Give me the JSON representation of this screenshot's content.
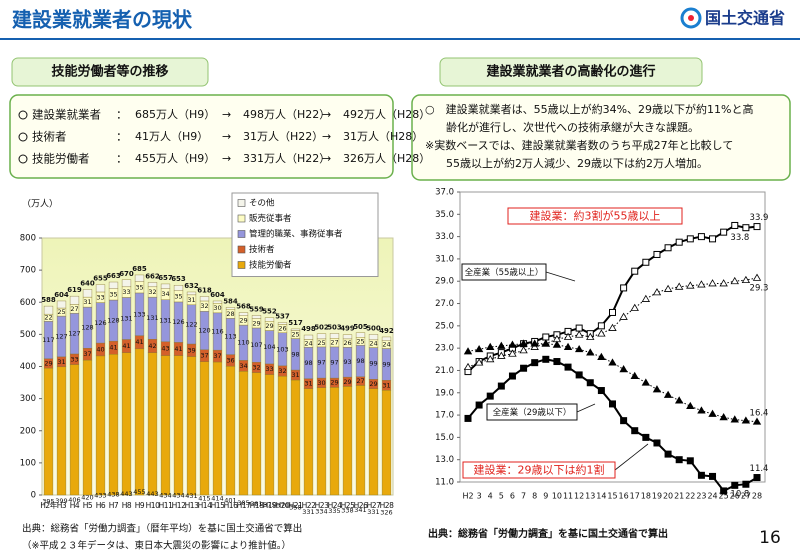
{
  "header": {
    "title": "建設業就業者の現状",
    "logo": "国土交通省"
  },
  "left": {
    "heading": "技能労働者等の推移",
    "colon": "：",
    "summary": [
      {
        "label": "建設業就業者",
        "parts": [
          "685万人（H9）",
          "→",
          "498万人（H22）",
          "→",
          "492万人（H28）"
        ]
      },
      {
        "label": "技術者",
        "parts": [
          "41万人（H9）",
          "→",
          "31万人（H22）",
          "→",
          "31万人（H28）"
        ]
      },
      {
        "label": "技能労働者",
        "parts": [
          "455万人（H9）",
          "→",
          "331万人（H22）",
          "→",
          "326万人（H28）"
        ]
      }
    ],
    "notes": [
      "出典：総務省「労働力調査」（暦年平均）を基に国土交通省で算出",
      "（※平成２３年データは、東日本大震災の影響により推計値。）"
    ]
  },
  "right": {
    "heading": "建設業就業者の高齢化の進行",
    "summary": [
      "○　建設業就業者は、55歳以上が約34%、29歳以下が約11%と高",
      "齢化が進行し、次世代への技術承継が大きな課題。",
      "※実数ベースでは、建設業就業者数のうち平成27年と比較して",
      "55歳以上が約2万人減少、29歳以下は約2万人増加。"
    ],
    "note": "出典：総務省「労働力調査」を基に国土交通省で算出"
  },
  "page_number": "16",
  "chart_data": [
    {
      "type": "stacked-bar",
      "y_label": "（万人）",
      "legend": "top",
      "grid": false,
      "categories": [
        "H2年",
        "H3",
        "H4",
        "H5",
        "H6",
        "H7",
        "H8",
        "H9",
        "H10",
        "H11",
        "H12",
        "H13",
        "H14",
        "H15",
        "H16",
        "H17",
        "H18",
        "H19",
        "H20",
        "H21",
        "H22",
        "H23",
        "H24",
        "H25",
        "H26",
        "H27",
        "H28"
      ],
      "ylim": [
        0,
        800
      ],
      "yticks": [
        0,
        100,
        200,
        300,
        400,
        500,
        600,
        700,
        800
      ],
      "series": [
        {
          "name": "技能労働者",
          "color": "#e8a90c",
          "labels": true,
          "values": [
            395,
            399,
            406,
            420,
            433,
            438,
            443,
            455,
            443,
            434,
            434,
            431,
            415,
            414,
            401,
            385,
            381,
            375,
            370,
            358,
            331,
            334,
            335,
            338,
            341,
            331,
            326
          ]
        },
        {
          "name": "技術者",
          "color": "#d4602a",
          "labels": true,
          "values": [
            29,
            31,
            33,
            37,
            40,
            41,
            41,
            41,
            42,
            43,
            41,
            39,
            37,
            37,
            36,
            34,
            32,
            33,
            32,
            31,
            31,
            30,
            29,
            29,
            27,
            29,
            31
          ]
        },
        {
          "name": "管理的職業、事務従事者",
          "color": "#9596dc",
          "labels": true,
          "values": [
            117,
            127,
            127,
            128,
            126,
            128,
            131,
            133,
            131,
            131,
            126,
            122,
            120,
            116,
            113,
            110,
            107,
            104,
            103,
            98,
            98,
            97,
            97,
            93,
            98,
            99,
            99
          ]
        },
        {
          "name": "販売従事者",
          "color": "#fdfcc4",
          "labels": true,
          "values": [
            22,
            25,
            27,
            31,
            33,
            35,
            33,
            35,
            32,
            34,
            35,
            31,
            32,
            30,
            28,
            29,
            29,
            29,
            26,
            25,
            24,
            25,
            27,
            26,
            25,
            24,
            24
          ]
        },
        {
          "name": "その他",
          "color": "#f4f4ea",
          "labels": false,
          "values": [
            25,
            22,
            26,
            24,
            23,
            21,
            22,
            21,
            14,
            15,
            17,
            9,
            14,
            7,
            6,
            10,
            10,
            11,
            6,
            5,
            14,
            16,
            15,
            13,
            14,
            17,
            12
          ]
        }
      ],
      "totals": [
        588,
        604,
        619,
        640,
        655,
        663,
        670,
        685,
        662,
        657,
        653,
        632,
        618,
        604,
        584,
        568,
        559,
        552,
        537,
        517,
        498,
        502,
        503,
        499,
        505,
        500,
        492
      ]
    },
    {
      "type": "line",
      "grid": false,
      "categories": [
        "H2",
        "3",
        "4",
        "5",
        "6",
        "7",
        "8",
        "9",
        "10",
        "11",
        "12",
        "13",
        "14",
        "15",
        "16",
        "17",
        "18",
        "19",
        "20",
        "21",
        "22",
        "23",
        "24",
        "25",
        "26",
        "27",
        "28"
      ],
      "ylim": [
        11,
        37
      ],
      "yticks": [
        {
          "value": 11,
          "label": "11.0"
        },
        {
          "value": 13,
          "label": "13.0"
        },
        {
          "value": 15,
          "label": "15.0"
        },
        {
          "value": 17,
          "label": "17.0"
        },
        {
          "value": 19,
          "label": "19.0"
        },
        {
          "value": 21,
          "label": "21.0"
        },
        {
          "value": 23,
          "label": "23.0"
        },
        {
          "value": 25,
          "label": "25.0"
        },
        {
          "value": 27,
          "label": "27.0"
        },
        {
          "value": 29,
          "label": "29.0"
        },
        {
          "value": 31,
          "label": "31.0"
        },
        {
          "value": 33,
          "label": "33.0"
        },
        {
          "value": 35,
          "label": "35.0"
        },
        {
          "value": 37,
          "label": "37.0"
        }
      ],
      "series": [
        {
          "name": "建設業：約3割が55歳以上",
          "color": "#000000",
          "marker": "square",
          "filled": false,
          "dashed": false,
          "values": [
            20.9,
            21.8,
            22.3,
            22.6,
            23.0,
            23.4,
            23.6,
            24.0,
            24.2,
            24.5,
            24.8,
            24.3,
            25.0,
            26.2,
            28.4,
            29.9,
            30.7,
            31.4,
            32.0,
            32.5,
            32.8,
            33.0,
            32.8,
            33.4,
            34.0,
            33.8,
            33.9
          ],
          "value_labels": [
            null,
            null,
            null,
            null,
            null,
            null,
            null,
            null,
            null,
            null,
            null,
            null,
            null,
            null,
            null,
            null,
            null,
            null,
            null,
            null,
            null,
            null,
            null,
            null,
            null,
            "33.8",
            "33.9"
          ]
        },
        {
          "name": "全産業（55歳以上）",
          "color": "#000000",
          "marker": "triangle",
          "filled": false,
          "dashed": true,
          "values": [
            21.3,
            21.7,
            22.0,
            22.3,
            22.5,
            22.8,
            23.1,
            23.4,
            23.8,
            24.0,
            24.2,
            24.0,
            24.3,
            24.8,
            25.8,
            26.6,
            27.4,
            28.0,
            28.3,
            28.5,
            28.6,
            28.7,
            28.8,
            28.8,
            29.0,
            29.1,
            29.3
          ],
          "value_labels": [
            null,
            null,
            null,
            null,
            null,
            null,
            null,
            null,
            null,
            null,
            null,
            null,
            null,
            null,
            null,
            null,
            null,
            null,
            null,
            null,
            null,
            null,
            null,
            null,
            null,
            null,
            "29.3"
          ]
        },
        {
          "name": "全産業（29歳以下）",
          "color": "#000000",
          "marker": "triangle",
          "filled": true,
          "dashed": true,
          "values": [
            22.7,
            22.9,
            23.1,
            23.2,
            23.3,
            23.4,
            23.4,
            23.4,
            23.3,
            23.1,
            22.9,
            22.6,
            22.2,
            21.7,
            21.1,
            20.5,
            19.9,
            19.3,
            18.8,
            18.3,
            17.8,
            17.4,
            17.1,
            16.8,
            16.6,
            16.5,
            16.4
          ],
          "value_labels": [
            null,
            null,
            null,
            null,
            null,
            null,
            null,
            null,
            null,
            null,
            null,
            null,
            null,
            null,
            null,
            null,
            null,
            null,
            null,
            null,
            null,
            null,
            null,
            null,
            null,
            null,
            "16.4"
          ]
        },
        {
          "name": "建設業：29歳以下は約1割",
          "color": "#000000",
          "marker": "square",
          "filled": true,
          "dashed": false,
          "values": [
            16.7,
            17.9,
            18.7,
            19.6,
            20.5,
            21.2,
            21.7,
            22.0,
            21.8,
            21.3,
            20.6,
            19.9,
            19.2,
            18.0,
            16.5,
            15.6,
            15.0,
            14.5,
            13.5,
            13.0,
            12.9,
            11.6,
            11.5,
            10.2,
            10.7,
            10.8,
            11.4
          ],
          "value_labels": [
            null,
            null,
            null,
            null,
            null,
            null,
            null,
            null,
            null,
            null,
            null,
            null,
            null,
            null,
            null,
            null,
            null,
            null,
            null,
            null,
            null,
            null,
            null,
            null,
            null,
            "10.8",
            "11.4"
          ]
        }
      ]
    }
  ]
}
